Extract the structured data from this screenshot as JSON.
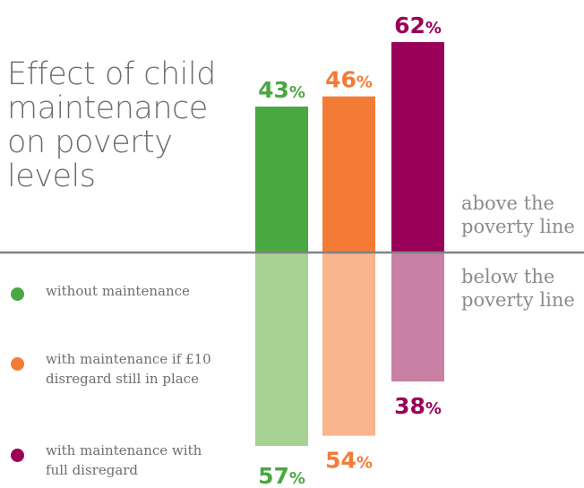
{
  "title": "Effect of child maintenance on poverty levels",
  "labels": {
    "above": "above the poverty line",
    "below": "below the poverty line"
  },
  "legend": [
    {
      "text": "without maintenance",
      "color": "#4aa843"
    },
    {
      "text": "with maintenance if £10 disregard still in place",
      "color": "#f47b36"
    },
    {
      "text": "with maintenance with full disregard",
      "color": "#9b0058"
    }
  ],
  "chart_data": {
    "type": "bar",
    "title": "Effect of child maintenance on poverty levels",
    "unit": "%",
    "categories": [
      "without maintenance",
      "with maintenance if £10 disregard still in place",
      "with maintenance with full disregard"
    ],
    "series": [
      {
        "name": "above the poverty line",
        "values": [
          43,
          46,
          62
        ]
      },
      {
        "name": "below the poverty line",
        "values": [
          57,
          54,
          38
        ]
      }
    ],
    "colors": {
      "above": [
        "#4aa843",
        "#f47b36",
        "#9b0058"
      ],
      "below": [
        "#a6d292",
        "#fab58e",
        "#c880a4"
      ],
      "baseline": "#808284"
    },
    "ylim": [
      0,
      100
    ],
    "legend_position": "left",
    "grid": false
  }
}
